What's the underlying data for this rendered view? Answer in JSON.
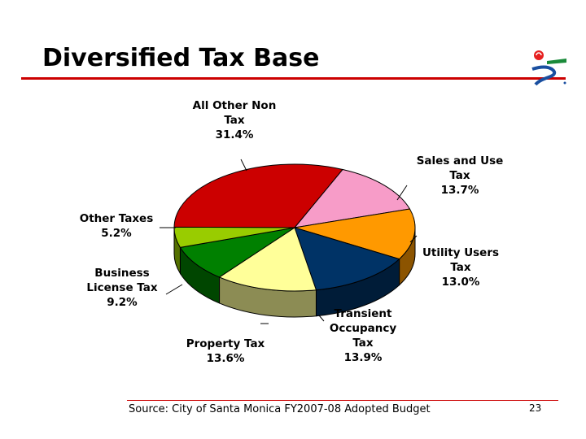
{
  "slide": {
    "title": "Diversified Tax Base",
    "source": "Source: City of Santa Monica FY2007-08 Adopted Budget",
    "page_number": "23",
    "accent_color": "#cc0000"
  },
  "chart_data": {
    "type": "pie",
    "title": "",
    "slices": [
      {
        "lines": [
          "All Other Non",
          "Tax",
          "31.4%"
        ],
        "value": 31.4,
        "color": "#cc0000"
      },
      {
        "lines": [
          "Sales and Use",
          "Tax",
          "13.7%"
        ],
        "value": 13.7,
        "color": "#f79cc8"
      },
      {
        "lines": [
          "Utility Users",
          "Tax",
          "13.0%"
        ],
        "value": 13.0,
        "color": "#ff9900"
      },
      {
        "lines": [
          "Transient",
          "Occupancy",
          "Tax",
          "13.9%"
        ],
        "value": 13.9,
        "color": "#003366"
      },
      {
        "lines": [
          "Property Tax",
          "13.6%"
        ],
        "value": 13.6,
        "color": "#ffff99"
      },
      {
        "lines": [
          "Business",
          "License Tax",
          "9.2%"
        ],
        "value": 9.2,
        "color": "#008000"
      },
      {
        "lines": [
          "Other Taxes",
          "5.2%"
        ],
        "value": 5.2,
        "color": "#99cc00"
      }
    ]
  }
}
